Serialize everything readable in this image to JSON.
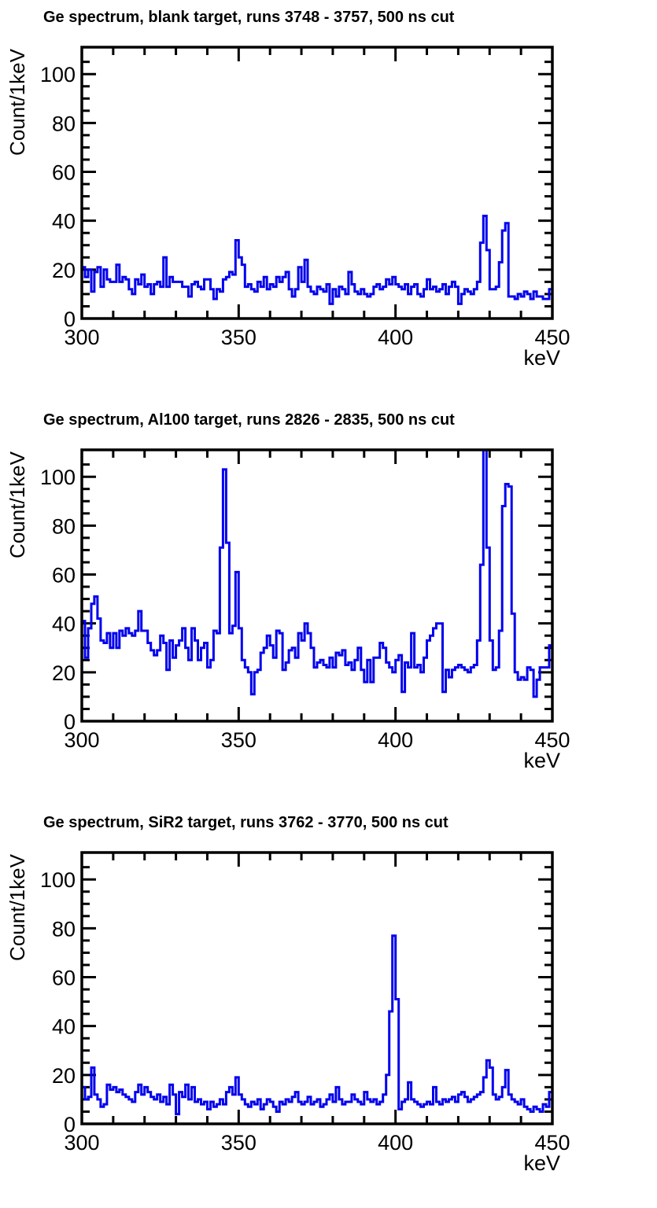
{
  "page": {
    "background": "#ffffff",
    "frame_color": "#000000",
    "line_color": "#0000ee",
    "text_color": "#000000"
  },
  "chart_data": [
    {
      "type": "line",
      "style": "step-histogram",
      "title": "Ge spectrum, blank target, runs 3748 - 3757, 500 ns cut",
      "xlabel": "keV",
      "ylabel": "Count/1keV",
      "xlim": [
        300,
        450
      ],
      "ylim": [
        0,
        111
      ],
      "x_major_ticks": [
        300,
        350,
        400,
        450
      ],
      "x_minor_step": 10,
      "y_major_ticks": [
        0,
        20,
        40,
        60,
        80,
        100
      ],
      "y_minor_step": 5,
      "grid": false,
      "legend": "none",
      "x_start": 300,
      "bin_width": 1,
      "values": [
        21,
        17,
        20,
        11,
        19,
        21,
        13,
        20,
        16,
        15,
        15,
        22,
        15,
        17,
        16,
        12,
        10,
        16,
        14,
        18,
        13,
        14,
        10,
        14,
        15,
        13,
        25,
        13,
        17,
        15,
        15,
        15,
        13,
        13,
        9,
        14,
        15,
        13,
        12,
        16,
        16,
        12,
        8,
        12,
        11,
        16,
        17,
        19,
        18,
        32,
        25,
        22,
        13,
        14,
        12,
        11,
        15,
        13,
        17,
        12,
        14,
        13,
        17,
        15,
        17,
        19,
        12,
        9,
        12,
        21,
        15,
        24,
        13,
        11,
        10,
        13,
        12,
        11,
        14,
        6,
        12,
        9,
        13,
        12,
        10,
        19,
        14,
        11,
        10,
        12,
        10,
        9,
        10,
        13,
        14,
        12,
        13,
        16,
        14,
        17,
        14,
        13,
        12,
        14,
        10,
        13,
        14,
        10,
        9,
        12,
        16,
        12,
        13,
        11,
        12,
        14,
        10,
        13,
        15,
        13,
        6,
        10,
        12,
        11,
        10,
        12,
        15,
        31,
        42,
        28,
        12,
        12,
        13,
        23,
        36,
        39,
        9,
        9,
        8,
        10,
        9,
        11,
        10,
        8,
        11,
        9,
        9,
        8,
        8,
        12
      ]
    },
    {
      "type": "line",
      "style": "step-histogram",
      "title": "Ge spectrum, Al100 target, runs 2826 - 2835, 500 ns cut",
      "xlabel": "keV",
      "ylabel": "Count/1keV",
      "xlim": [
        300,
        450
      ],
      "ylim": [
        0,
        111
      ],
      "x_major_ticks": [
        300,
        350,
        400,
        450
      ],
      "x_minor_step": 10,
      "y_major_ticks": [
        0,
        20,
        40,
        60,
        80,
        100
      ],
      "y_minor_step": 5,
      "grid": false,
      "legend": "none",
      "x_start": 300,
      "bin_width": 1,
      "values": [
        41,
        26,
        38,
        48,
        51,
        42,
        33,
        32,
        36,
        30,
        36,
        30,
        37,
        35,
        38,
        36,
        35,
        37,
        45,
        37,
        37,
        32,
        29,
        27,
        29,
        35,
        32,
        21,
        33,
        26,
        31,
        33,
        38,
        30,
        25,
        38,
        33,
        25,
        30,
        32,
        22,
        25,
        37,
        36,
        71,
        103,
        73,
        36,
        39,
        61,
        38,
        25,
        22,
        20,
        11,
        20,
        21,
        28,
        30,
        35,
        31,
        26,
        37,
        36,
        21,
        24,
        29,
        30,
        26,
        36,
        33,
        40,
        36,
        30,
        22,
        24,
        25,
        23,
        22,
        26,
        22,
        28,
        27,
        29,
        23,
        24,
        21,
        25,
        30,
        21,
        16,
        25,
        16,
        26,
        26,
        32,
        30,
        24,
        22,
        20,
        25,
        27,
        12,
        24,
        22,
        36,
        22,
        23,
        20,
        26,
        33,
        35,
        38,
        40,
        40,
        12,
        21,
        18,
        21,
        22,
        23,
        22,
        21,
        20,
        22,
        23,
        33,
        64,
        112,
        71,
        33,
        21,
        22,
        37,
        88,
        97,
        96,
        44,
        20,
        17,
        18,
        17,
        22,
        21,
        10,
        17,
        22,
        22,
        22,
        31
      ]
    },
    {
      "type": "line",
      "style": "step-histogram",
      "title": "Ge spectrum, SiR2 target, runs 3762 - 3770, 500 ns cut",
      "xlabel": "keV",
      "ylabel": "Count/1keV",
      "xlim": [
        300,
        450
      ],
      "ylim": [
        0,
        111
      ],
      "x_major_ticks": [
        300,
        350,
        400,
        450
      ],
      "x_minor_step": 10,
      "y_major_ticks": [
        0,
        20,
        40,
        60,
        80,
        100
      ],
      "y_minor_step": 5,
      "grid": false,
      "legend": "none",
      "x_start": 300,
      "bin_width": 1,
      "values": [
        15,
        10,
        11,
        23,
        12,
        10,
        7,
        8,
        16,
        14,
        15,
        13,
        14,
        12,
        11,
        10,
        9,
        13,
        16,
        12,
        15,
        13,
        11,
        10,
        12,
        9,
        11,
        8,
        16,
        12,
        4,
        13,
        11,
        16,
        10,
        15,
        9,
        10,
        8,
        9,
        6,
        9,
        7,
        8,
        10,
        8,
        13,
        15,
        12,
        19,
        12,
        10,
        8,
        7,
        9,
        8,
        10,
        6,
        8,
        10,
        9,
        7,
        5,
        9,
        8,
        10,
        9,
        11,
        13,
        9,
        8,
        9,
        11,
        8,
        9,
        10,
        7,
        8,
        10,
        12,
        9,
        15,
        10,
        8,
        9,
        9,
        12,
        10,
        9,
        8,
        13,
        10,
        9,
        10,
        8,
        9,
        12,
        20,
        46,
        77,
        51,
        6,
        9,
        10,
        17,
        10,
        9,
        8,
        7,
        8,
        9,
        8,
        15,
        9,
        8,
        10,
        9,
        10,
        11,
        9,
        12,
        13,
        11,
        9,
        10,
        11,
        12,
        13,
        19,
        26,
        23,
        12,
        10,
        11,
        15,
        22,
        12,
        10,
        9,
        8,
        10,
        7,
        6,
        5,
        7,
        6,
        5,
        8,
        7,
        13
      ]
    }
  ]
}
